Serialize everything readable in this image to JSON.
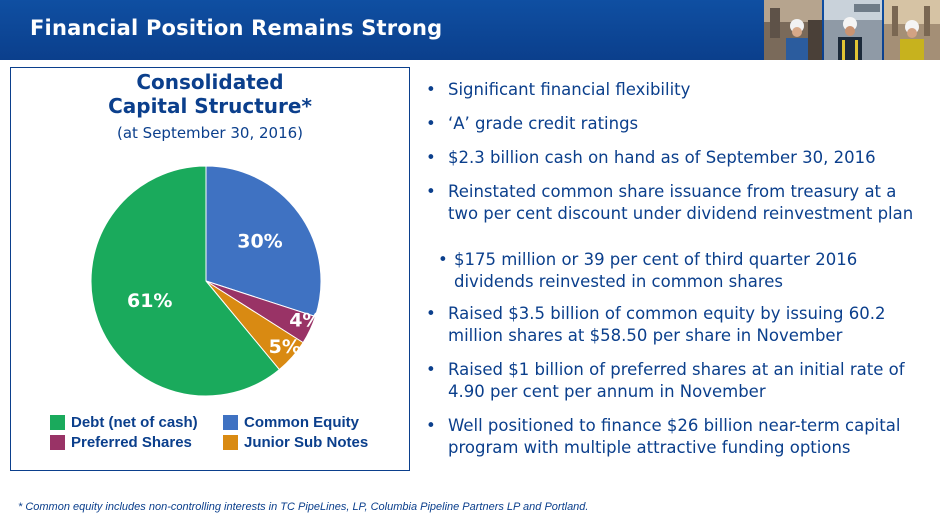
{
  "header": {
    "title": "Financial Position Remains Strong"
  },
  "chart_data": {
    "type": "pie",
    "title": "Consolidated Capital Structure*",
    "title_line1": "Consolidated",
    "title_line2": "Capital Structure*",
    "subtitle": "(at September 30, 2016)",
    "slices": [
      {
        "name": "Common Equity",
        "value": 30,
        "label": "30%",
        "color": "#3f72c2"
      },
      {
        "name": "Preferred Shares",
        "value": 4,
        "label": "4%",
        "color": "#993366"
      },
      {
        "name": "Junior Sub Notes",
        "value": 5,
        "label": "5%",
        "color": "#d98a12"
      },
      {
        "name": "Debt (net of cash)",
        "value": 61,
        "label": "61%",
        "color": "#1aaa5c"
      }
    ],
    "legend": [
      "Debt (net of cash)",
      "Common Equity",
      "Preferred Shares",
      "Junior Sub Notes"
    ]
  },
  "bullets": [
    {
      "text": "Significant financial flexibility"
    },
    {
      "text": "‘A’ grade credit ratings"
    },
    {
      "text": "$2.3 billion cash on hand as of September 30, 2016"
    },
    {
      "text": "Reinstated common share issuance from treasury at a two per cent discount under dividend reinvestment plan",
      "sub": "$175 million or 39 per cent of third quarter 2016 dividends reinvested in common shares"
    },
    {
      "text": "Raised $3.5 billion of common equity by issuing 60.2 million shares at $58.50 per share in November"
    },
    {
      "text": "Raised $1 billion of preferred shares at an initial rate of 4.90 per cent per annum in November"
    },
    {
      "text": "Well positioned to finance $26 billion near-term capital program with multiple attractive funding options"
    }
  ],
  "footnote": "*  Common equity includes non-controlling interests in TC PipeLines, LP, Columbia Pipeline Partners LP and Portland.",
  "colors": {
    "brand_blue": "#0b3f8c",
    "header_blue": "#0f4fa2"
  }
}
